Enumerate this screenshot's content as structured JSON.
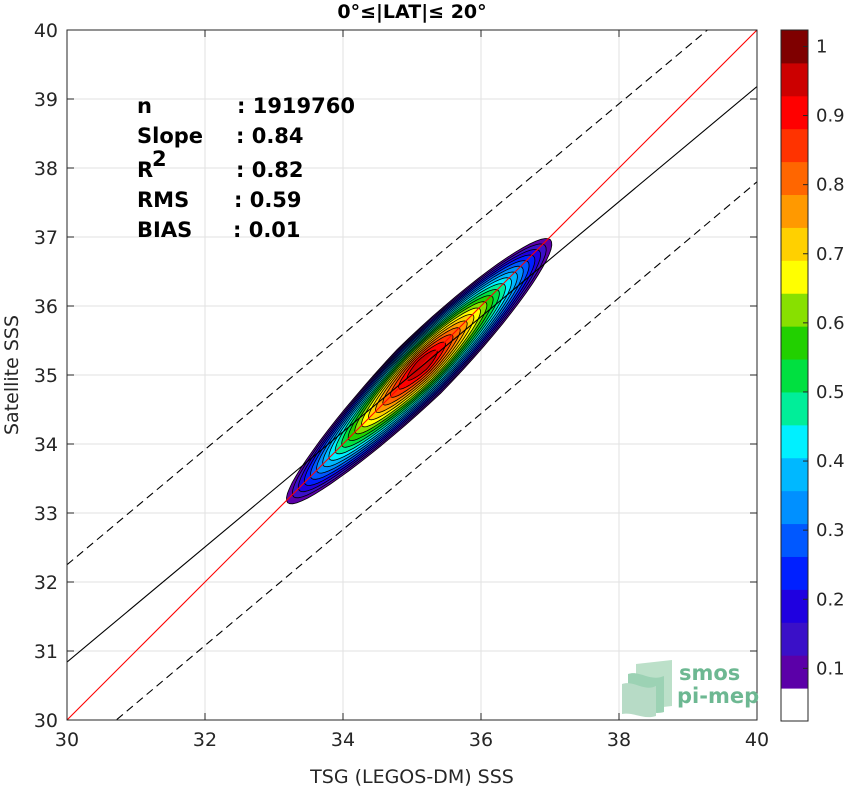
{
  "chart_data": {
    "type": "contour",
    "title": "0°≤|LAT|≤ 20°",
    "xlabel": "TSG (LEGOS-DM) SSS",
    "ylabel": "Satellite SSS",
    "xlim": [
      30,
      40
    ],
    "ylim": [
      30,
      40
    ],
    "xticks": [
      "30",
      "32",
      "34",
      "36",
      "38",
      "40"
    ],
    "yticks": [
      "30",
      "31",
      "32",
      "33",
      "34",
      "35",
      "36",
      "37",
      "38",
      "39",
      "40"
    ],
    "grid": true,
    "stats": [
      {
        "label": "n",
        "value": ": 1919760"
      },
      {
        "label": "Slope",
        "value": ": 0.84"
      },
      {
        "label": "R",
        "sup": "2",
        "value": ": 0.82"
      },
      {
        "label": "RMS",
        "value": ": 0.59"
      },
      {
        "label": "BIAS",
        "value": ": 0.01"
      }
    ],
    "lines": [
      {
        "name": "one-to-one",
        "x": [
          30,
          40
        ],
        "y": [
          30,
          40
        ],
        "color": "#ff0000",
        "style": "solid"
      },
      {
        "name": "regression",
        "x": [
          30,
          40
        ],
        "y": [
          30.84,
          39.18
        ],
        "color": "#000000",
        "style": "solid"
      },
      {
        "name": "upper-bound",
        "x": [
          30,
          40
        ],
        "y": [
          32.25,
          40.6
        ],
        "color": "#000000",
        "style": "dashed"
      },
      {
        "name": "lower-bound",
        "x": [
          30,
          40
        ],
        "y": [
          29.4,
          37.8
        ],
        "color": "#000000",
        "style": "dashed"
      }
    ],
    "density": {
      "center": [
        35.1,
        35.05
      ],
      "mode": [
        35.15,
        35.15
      ],
      "levels": [
        0.05,
        0.1,
        0.15,
        0.2,
        0.25,
        0.3,
        0.35,
        0.4,
        0.45,
        0.5,
        0.55,
        0.6,
        0.65,
        0.7,
        0.75,
        0.8,
        0.85,
        0.9,
        0.95
      ],
      "outer_extent": {
        "x": [
          33.5,
          37.3
        ],
        "y": [
          33.5,
          37.4
        ]
      }
    },
    "colorbar": {
      "min": 0,
      "max": 1,
      "step": 0.05,
      "ticks": [
        "0.1",
        "0.2",
        "0.3",
        "0.4",
        "0.5",
        "0.6",
        "0.7",
        "0.8",
        "0.9",
        "1"
      ],
      "colors": [
        "#ffffff",
        "#5b00a8",
        "#3a10c8",
        "#1f00e0",
        "#0020ff",
        "#0058ff",
        "#0090ff",
        "#00b8ff",
        "#00f0ff",
        "#00ee99",
        "#00e040",
        "#22d000",
        "#88e000",
        "#ffff00",
        "#ffd000",
        "#ff9900",
        "#ff6600",
        "#ff3300",
        "#ff0000",
        "#cc0000",
        "#7f0000"
      ]
    },
    "logo": {
      "line1": "smos",
      "line2": "pi-mep"
    }
  }
}
